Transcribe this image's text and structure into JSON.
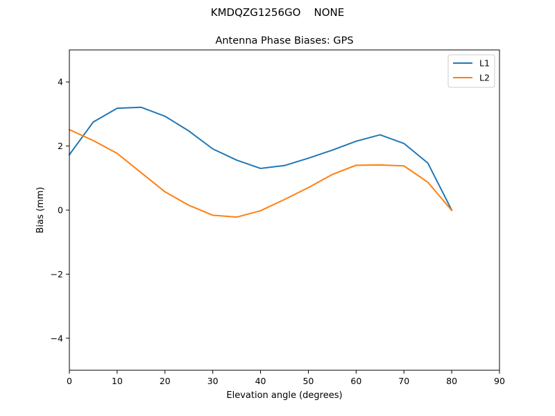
{
  "chart_data": {
    "type": "line",
    "suptitle": "KMDQZG1256GO    NONE",
    "title": "Antenna Phase Biases: GPS",
    "xlabel": "Elevation angle (degrees)",
    "ylabel": "Bias (mm)",
    "xlim": [
      0,
      90
    ],
    "ylim": [
      -5,
      5
    ],
    "xticks": [
      0,
      10,
      20,
      30,
      40,
      50,
      60,
      70,
      80,
      90
    ],
    "yticks": [
      -4,
      -2,
      0,
      2,
      4
    ],
    "xtick_labels": [
      "0",
      "10",
      "20",
      "30",
      "40",
      "50",
      "60",
      "70",
      "80",
      "90"
    ],
    "ytick_labels": [
      "−4",
      "−2",
      "0",
      "2",
      "4"
    ],
    "grid": false,
    "legend_position": "top-right",
    "x": [
      0,
      5,
      10,
      15,
      20,
      25,
      30,
      35,
      40,
      45,
      50,
      55,
      60,
      65,
      70,
      75,
      80
    ],
    "series": [
      {
        "name": "L1",
        "color": "#1f77b4",
        "values": [
          1.73,
          2.75,
          3.18,
          3.21,
          2.93,
          2.47,
          1.91,
          1.56,
          1.3,
          1.39,
          1.62,
          1.87,
          2.15,
          2.35,
          2.08,
          1.47,
          0.0
        ]
      },
      {
        "name": "L2",
        "color": "#ff7f0e",
        "values": [
          2.51,
          2.17,
          1.77,
          1.17,
          0.57,
          0.15,
          -0.16,
          -0.22,
          -0.02,
          0.33,
          0.7,
          1.11,
          1.4,
          1.41,
          1.38,
          0.87,
          -0.01
        ]
      }
    ]
  }
}
